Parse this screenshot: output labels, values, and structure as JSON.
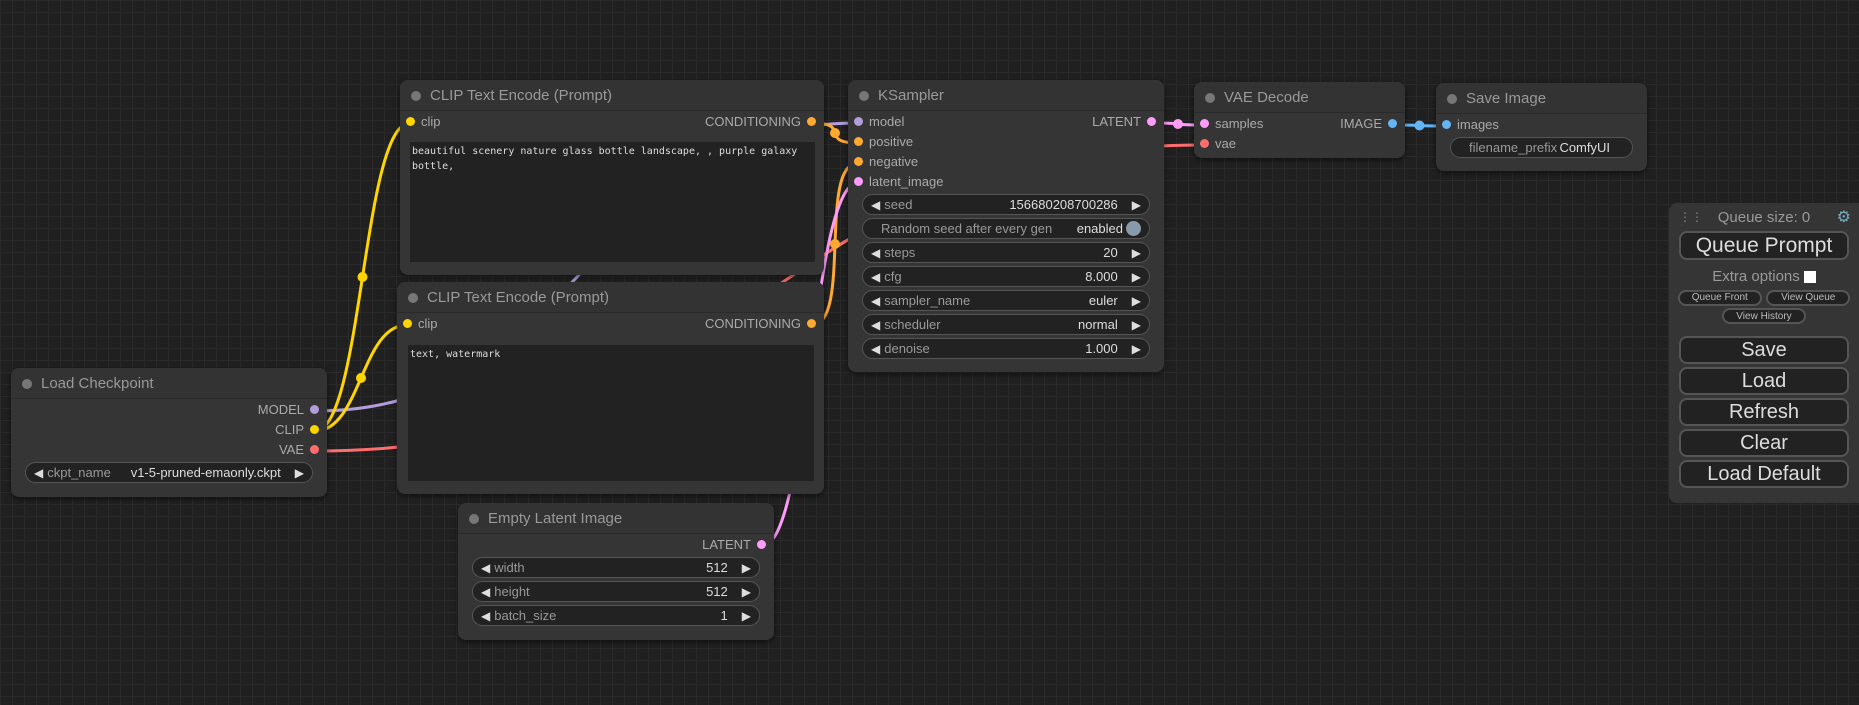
{
  "colors": {
    "MODEL": "#b39ddb",
    "CLIP": "#ffd500",
    "VAE": "#ff6e6e",
    "CONDITIONING": "#ffa931",
    "LATENT": "#ff9cf9",
    "IMAGE": "#64b5f6"
  },
  "nodes": [
    {
      "id": "clip1",
      "title": "CLIP Text Encode (Prompt)",
      "inputs": [
        {
          "name": "clip",
          "type": "CLIP"
        }
      ],
      "outputs": [
        {
          "name": "CONDITIONING",
          "type": "CONDITIONING"
        }
      ],
      "text": "beautiful scenery nature glass bottle landscape, , purple galaxy bottle,",
      "widgets": []
    },
    {
      "id": "clip2",
      "title": "CLIP Text Encode (Prompt)",
      "inputs": [
        {
          "name": "clip",
          "type": "CLIP"
        }
      ],
      "outputs": [
        {
          "name": "CONDITIONING",
          "type": "CONDITIONING"
        }
      ],
      "text": "text, watermark",
      "widgets": []
    },
    {
      "id": "ckpt",
      "title": "Load Checkpoint",
      "inputs": [],
      "outputs": [
        {
          "name": "MODEL",
          "type": "MODEL"
        },
        {
          "name": "CLIP",
          "type": "CLIP"
        },
        {
          "name": "VAE",
          "type": "VAE"
        }
      ],
      "widgets": [
        {
          "label": "ckpt_name",
          "value": "v1-5-pruned-emaonly.ckpt"
        }
      ]
    },
    {
      "id": "latent",
      "title": "Empty Latent Image",
      "inputs": [],
      "outputs": [
        {
          "name": "LATENT",
          "type": "LATENT"
        }
      ],
      "widgets": [
        {
          "label": "width",
          "value": "512"
        },
        {
          "label": "height",
          "value": "512"
        },
        {
          "label": "batch_size",
          "value": "1"
        }
      ]
    },
    {
      "id": "ksampler",
      "title": "KSampler",
      "inputs": [
        {
          "name": "model",
          "type": "MODEL"
        },
        {
          "name": "positive",
          "type": "CONDITIONING"
        },
        {
          "name": "negative",
          "type": "CONDITIONING"
        },
        {
          "name": "latent_image",
          "type": "LATENT"
        }
      ],
      "outputs": [
        {
          "name": "LATENT",
          "type": "LATENT"
        }
      ],
      "widgets": [
        {
          "label": "seed",
          "value": "156680208700286"
        },
        {
          "label": "Random seed after every gen",
          "value": "enabled",
          "toggle": true
        },
        {
          "label": "steps",
          "value": "20"
        },
        {
          "label": "cfg",
          "value": "8.000"
        },
        {
          "label": "sampler_name",
          "value": "euler"
        },
        {
          "label": "scheduler",
          "value": "normal"
        },
        {
          "label": "denoise",
          "value": "1.000"
        }
      ]
    },
    {
      "id": "vaedecode",
      "title": "VAE Decode",
      "inputs": [
        {
          "name": "samples",
          "type": "LATENT"
        },
        {
          "name": "vae",
          "type": "VAE"
        }
      ],
      "outputs": [
        {
          "name": "IMAGE",
          "type": "IMAGE"
        }
      ],
      "widgets": []
    },
    {
      "id": "save",
      "title": "Save Image",
      "inputs": [
        {
          "name": "images",
          "type": "IMAGE"
        }
      ],
      "outputs": [],
      "widgets": [
        {
          "label": "filename_prefix",
          "value": "ComfyUI",
          "plain": true
        }
      ]
    }
  ],
  "panel": {
    "queue_size": "Queue size: 0",
    "queue_prompt": "Queue Prompt",
    "extra_options": "Extra options",
    "queue_front": "Queue Front",
    "view_queue": "View Queue",
    "view_history": "View History",
    "save": "Save",
    "load": "Load",
    "refresh": "Refresh",
    "clear": "Clear",
    "load_default": "Load Default"
  }
}
